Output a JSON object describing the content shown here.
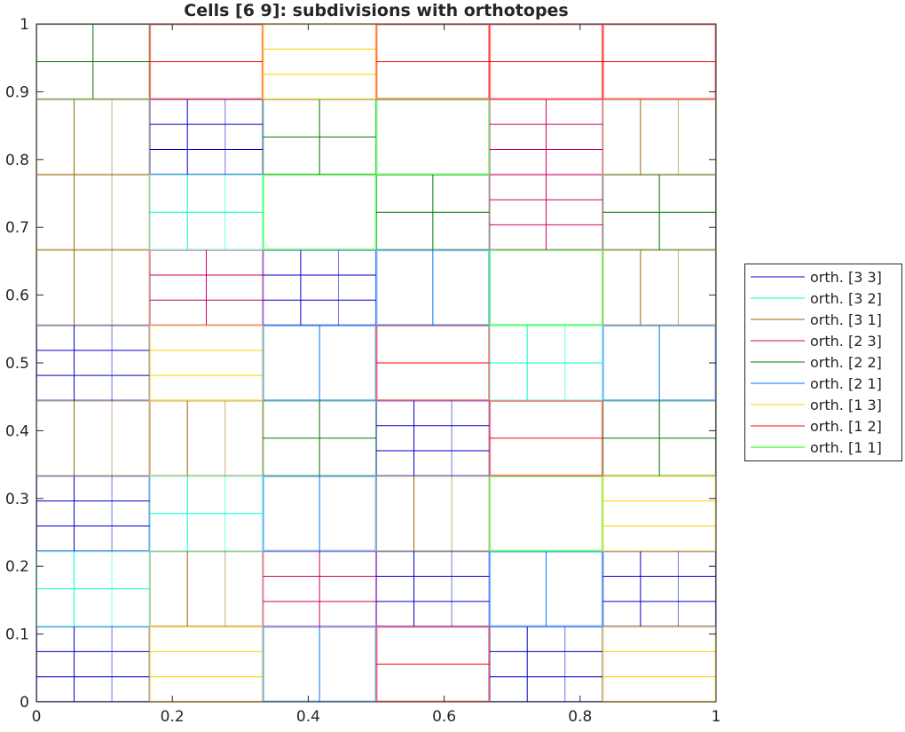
{
  "chart_data": {
    "type": "diagram-grid",
    "title": "Cells [6  9]: subdivisions with orthotopes",
    "xlim": [
      0,
      1
    ],
    "ylim": [
      0,
      1
    ],
    "xticks": [
      "0",
      "0.2",
      "0.4",
      "0.6",
      "0.8",
      "1"
    ],
    "xtick_values": [
      0,
      0.2,
      0.4,
      0.6,
      0.8,
      1
    ],
    "yticks": [
      "0",
      "0.1",
      "0.2",
      "0.3",
      "0.4",
      "0.5",
      "0.6",
      "0.7",
      "0.8",
      "0.9",
      "1"
    ],
    "ytick_values": [
      0,
      0.1,
      0.2,
      0.3,
      0.4,
      0.5,
      0.6,
      0.7,
      0.8,
      0.9,
      1
    ],
    "grid_cells": [
      6,
      9
    ],
    "grid": false,
    "legend_placement": "right",
    "legend": [
      {
        "label": "orth. [3  3]",
        "key": "3 3",
        "color": "#0000cc"
      },
      {
        "label": "orth. [3  2]",
        "key": "3 2",
        "color": "#00ffcc"
      },
      {
        "label": "orth. [3  1]",
        "key": "3 1",
        "color": "#996600"
      },
      {
        "label": "orth. [2  3]",
        "key": "2 3",
        "color": "#cc0066"
      },
      {
        "label": "orth. [2  2]",
        "key": "2 2",
        "color": "#007700"
      },
      {
        "label": "orth. [2  1]",
        "key": "2 1",
        "color": "#0077ff"
      },
      {
        "label": "orth. [1  3]",
        "key": "1 3",
        "color": "#ffcc00"
      },
      {
        "label": "orth. [1  2]",
        "key": "1 2",
        "color": "#ff0000"
      },
      {
        "label": "orth. [1  1]",
        "key": "1 1",
        "color": "#00ff00"
      }
    ],
    "cells_rows_bottom_to_top": [
      [
        "3 3",
        "1 3",
        "2 1",
        "1 2",
        "3 3",
        "1 3"
      ],
      [
        "3 2",
        "3 1",
        "2 3",
        "3 3",
        "2 1",
        "3 3"
      ],
      [
        "3 3",
        "3 2",
        "2 1",
        "3 1",
        "1 1",
        "1 3"
      ],
      [
        "3 1",
        "3 1",
        "2 2",
        "3 3",
        "1 2",
        "2 2"
      ],
      [
        "3 3",
        "1 3",
        "2 1",
        "1 2",
        "3 2",
        "2 1"
      ],
      [
        "3 1",
        "2 3",
        "3 3",
        "2 1",
        "1 1",
        "3 1"
      ],
      [
        "3 1",
        "3 2",
        "1 1",
        "2 2",
        "2 3",
        "2 2"
      ],
      [
        "3 1",
        "3 3",
        "2 2",
        "1 1",
        "2 3",
        "3 1"
      ],
      [
        "2 2",
        "1 2",
        "1 3",
        "1 2",
        "1 2",
        "1 2"
      ]
    ]
  }
}
